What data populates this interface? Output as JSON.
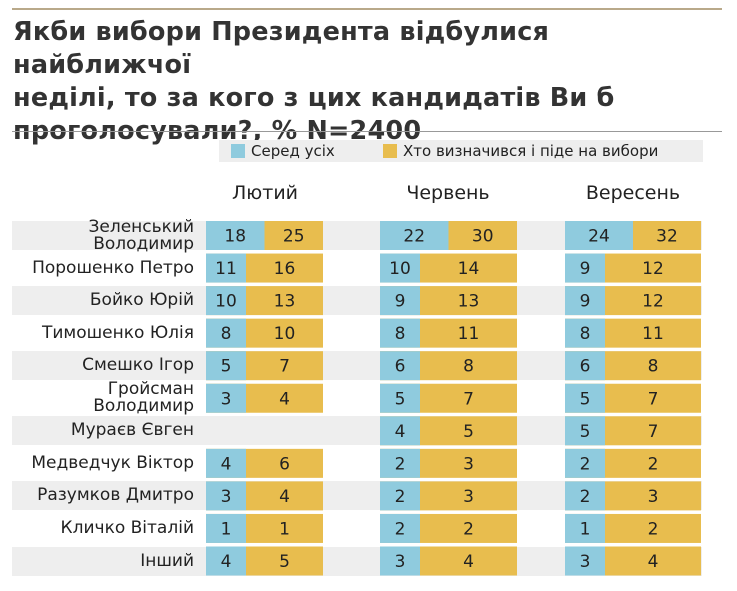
{
  "header": {
    "title": "Якби вибори Президента відбулися найближчої\nнеділі, то за кого з цих кандидатів Ви б\nпроголосували?, % N=2400"
  },
  "colors": {
    "series_all": "#8fcbde",
    "series_decided": "#e8bd4e",
    "row_band": "#eeeeee"
  },
  "chart_data": {
    "type": "bar",
    "title": "Якби вибори Президента відбулися найближчої неділі, то за кого з цих кандидатів Ви б проголосували?, % N=2400",
    "stacked": true,
    "orientation": "horizontal",
    "legend": {
      "placement": "top",
      "entries": [
        "Серед усіх",
        "Хто визначився і піде на вибори"
      ]
    },
    "months": [
      "Лютий",
      "Червень",
      "Вересень"
    ],
    "categories": [
      "Зеленський Володимир",
      "Порошенко Петро",
      "Бойко Юрій",
      "Тимошенко Юлія",
      "Смешко Ігор",
      "Гройсман Володимир",
      "Мураєв Євген",
      "Медведчук Віктор",
      "Разумков Дмитро",
      "Кличко Віталій",
      "Інший"
    ],
    "panels": [
      {
        "month": "Лютий",
        "series": [
          {
            "name": "Серед усіх",
            "values": [
              18,
              11,
              10,
              8,
              5,
              3,
              null,
              4,
              3,
              1,
              4
            ]
          },
          {
            "name": "Хто визначився і піде на вибори",
            "values": [
              25,
              16,
              13,
              10,
              7,
              4,
              null,
              6,
              4,
              1,
              5
            ]
          }
        ]
      },
      {
        "month": "Червень",
        "series": [
          {
            "name": "Серед усіх",
            "values": [
              22,
              10,
              9,
              8,
              6,
              5,
              4,
              2,
              2,
              2,
              3
            ]
          },
          {
            "name": "Хто визначився і піде на вибори",
            "values": [
              30,
              14,
              13,
              11,
              8,
              7,
              5,
              3,
              3,
              2,
              4
            ]
          }
        ]
      },
      {
        "month": "Вересень",
        "series": [
          {
            "name": "Серед усіх",
            "values": [
              24,
              9,
              9,
              8,
              6,
              5,
              5,
              2,
              2,
              1,
              3
            ]
          },
          {
            "name": "Хто визначився і піде на вибори",
            "values": [
              32,
              12,
              12,
              11,
              8,
              7,
              7,
              2,
              3,
              2,
              4
            ]
          }
        ]
      }
    ]
  }
}
